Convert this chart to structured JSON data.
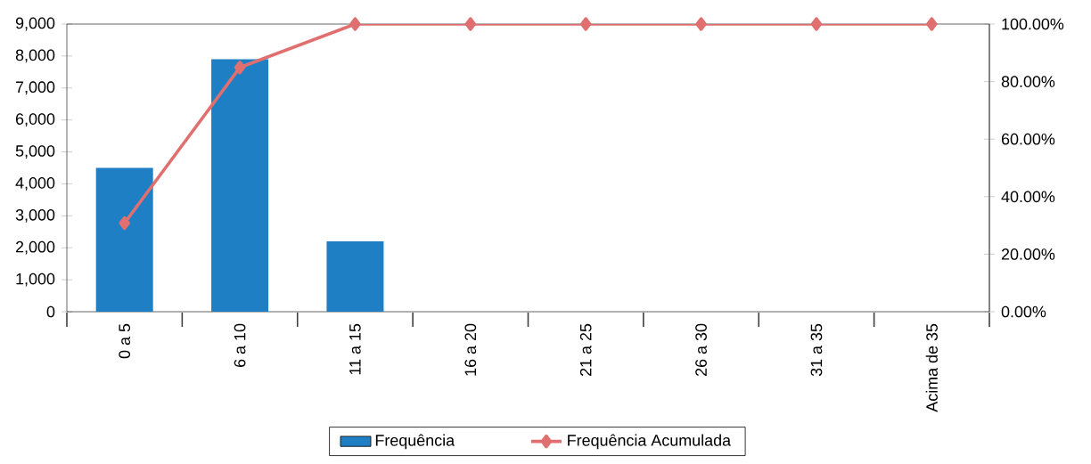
{
  "chart_data": {
    "type": "bar",
    "categories": [
      "0 a 5",
      "6 a 10",
      "11 a 15",
      "16 a 20",
      "21 a 25",
      "26 a 30",
      "31 a 35",
      "Acima de 35"
    ],
    "series": [
      {
        "name": "Frequência",
        "color": "#1f7fc4",
        "values": [
          4500,
          7900,
          2200,
          0,
          0,
          0,
          0,
          0
        ]
      },
      {
        "name": "Frequência Acumulada",
        "type": "line",
        "axis": "y2",
        "color": "#e07070",
        "marker": "diamond",
        "values": [
          30.8,
          84.9,
          100,
          100,
          100,
          100,
          100,
          100
        ]
      }
    ],
    "ylim": [
      0,
      9000
    ],
    "yticks": [
      0,
      {
        "value": 1000,
        "label": "1,000"
      },
      {
        "value": 2000,
        "label": "2,000"
      },
      {
        "value": 3000,
        "label": "3,000"
      },
      {
        "value": 4000,
        "label": "4,000"
      },
      {
        "value": 5000,
        "label": "5,000"
      },
      {
        "value": 6000,
        "label": "6,000"
      },
      {
        "value": 7000,
        "label": "7,000"
      },
      {
        "value": 8000,
        "label": "8,000"
      },
      {
        "value": 9000,
        "label": "9,000"
      }
    ],
    "y2lim": [
      0,
      100
    ],
    "y2ticks": [
      {
        "value": 0,
        "label": "0.00%"
      },
      {
        "value": 20,
        "label": "20.00%"
      },
      {
        "value": 40,
        "label": "40.00%"
      },
      {
        "value": 60,
        "label": "60.00%"
      },
      {
        "value": 80,
        "label": "80.00%"
      },
      {
        "value": 100,
        "label": "100.00%"
      }
    ],
    "legend": "bottom"
  }
}
